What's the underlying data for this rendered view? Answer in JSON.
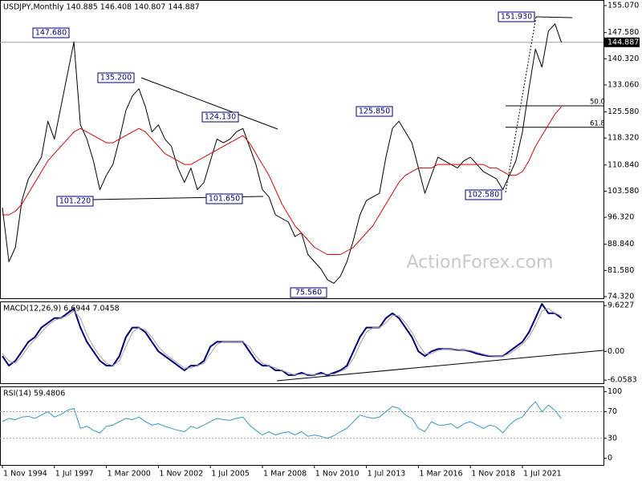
{
  "chart_data": [
    {
      "type": "line",
      "title": "USDJPY,Monthly  140.885 146.408 140.807 144.887",
      "watermark": "ActionForex.com",
      "ylim": [
        73.87,
        156.63
      ],
      "yticks": [
        {
          "value": 155.07,
          "label": "155.070"
        },
        {
          "value": 147.58,
          "label": "147.580"
        },
        {
          "value": 140.32,
          "label": "140.320"
        },
        {
          "value": 133.06,
          "label": "133.060"
        },
        {
          "value": 125.58,
          "label": "125.580"
        },
        {
          "value": 118.32,
          "label": "118.320"
        },
        {
          "value": 110.84,
          "label": "110.840"
        },
        {
          "value": 103.58,
          "label": "103.580"
        },
        {
          "value": 96.32,
          "label": "96.320"
        },
        {
          "value": 88.84,
          "label": "88.840"
        },
        {
          "value": 81.58,
          "label": "81.580"
        },
        {
          "value": 74.32,
          "label": "74.320"
        }
      ],
      "current_price": {
        "value": 144.887,
        "label": "144.887"
      },
      "fib_levels": [
        {
          "text": "50.0",
          "price": 127.25
        },
        {
          "text": "61.8",
          "price": 121.3
        }
      ],
      "annotations": [
        "147.680",
        "135.200",
        "124.130",
        "101.220",
        "101.650",
        "75.560",
        "125.850",
        "102.580",
        "151.930"
      ],
      "series": [
        {
          "color": "#000000",
          "width": 1,
          "values": [
            99,
            84,
            88,
            101,
            107,
            110,
            113,
            123,
            118,
            127,
            136,
            145,
            122,
            118,
            112,
            104,
            108,
            111,
            118,
            126,
            130,
            132,
            127,
            120,
            122,
            118,
            116,
            110,
            106,
            110,
            104,
            106,
            112,
            118,
            117,
            118,
            120,
            121,
            116,
            111,
            104,
            102,
            97,
            96,
            95,
            91,
            92,
            86,
            84,
            82,
            79,
            78,
            80,
            84,
            90,
            97,
            101,
            102,
            103,
            113,
            121,
            123,
            120,
            117,
            110,
            103,
            108,
            113,
            112,
            111,
            110,
            112,
            113,
            111,
            109,
            108,
            107,
            104,
            108,
            112,
            120,
            132,
            143,
            138,
            148,
            150,
            144.887
          ]
        },
        {
          "color": "#e00000",
          "width": 1,
          "values": [
            97,
            97,
            98,
            100,
            103,
            106,
            109,
            112,
            114,
            116,
            118,
            120,
            121,
            120,
            119,
            118,
            117,
            117,
            118,
            119,
            120,
            121,
            120,
            118,
            116,
            114,
            113,
            112,
            111,
            111,
            112,
            113,
            114,
            115,
            116,
            117,
            118,
            119,
            117,
            114,
            111,
            108,
            104,
            100,
            97,
            94,
            92,
            90,
            88,
            87,
            86,
            86,
            86,
            87,
            88,
            90,
            92,
            94,
            97,
            100,
            103,
            106,
            108,
            109,
            110,
            110,
            110,
            111,
            111,
            111,
            111,
            111,
            111,
            111,
            111,
            110,
            110,
            109,
            108,
            108,
            109,
            112,
            116,
            119,
            122,
            125,
            127
          ]
        }
      ]
    },
    {
      "type": "line",
      "title": "MACD(12,26,9) 6.6944 7.0458",
      "ylim": [
        -6.7,
        10.5
      ],
      "yticks": [
        9.6227,
        {
          "value": 0,
          "label": "0.00"
        },
        -6.0583
      ],
      "series": [
        {
          "color": "#000080",
          "width": 2,
          "values": [
            -1,
            -3,
            -2,
            0,
            2,
            3,
            5,
            6,
            7,
            7,
            8,
            9,
            5,
            2,
            0,
            -2,
            -3,
            -3,
            -1,
            3,
            5,
            5,
            4,
            2,
            0,
            -1,
            -2,
            -3,
            -4,
            -3,
            -3,
            -2,
            1,
            2,
            2,
            2,
            2,
            2,
            0,
            -2,
            -3,
            -3,
            -4,
            -4,
            -5,
            -5,
            -4.5,
            -5,
            -5,
            -4.5,
            -5,
            -4.5,
            -4,
            -3,
            0,
            3,
            5,
            5,
            5,
            7,
            8,
            7,
            5,
            3,
            0,
            -1,
            0,
            0.5,
            0.5,
            0.5,
            0.3,
            0.3,
            0,
            -0.5,
            -0.8,
            -1,
            -1,
            -1,
            0,
            1,
            2,
            4,
            7,
            10,
            8,
            8,
            7
          ]
        },
        {
          "color": "#a0a0a0",
          "width": 1,
          "values": [
            -0.5,
            -2,
            -2.5,
            -1,
            1,
            2.5,
            4,
            5.5,
            6.5,
            7,
            7.5,
            8.5,
            7,
            3.5,
            1,
            -1,
            -2.5,
            -3,
            -2,
            1,
            4,
            5,
            4.5,
            3,
            1,
            -0.5,
            -1.5,
            -2.5,
            -3.5,
            -3.5,
            -3,
            -2.5,
            -0.5,
            1.5,
            2,
            2,
            2,
            2,
            1,
            -1,
            -2.5,
            -3,
            -3.5,
            -4,
            -4.5,
            -5,
            -4.8,
            -4.8,
            -5,
            -4.8,
            -4.8,
            -4.8,
            -4.2,
            -3.5,
            -1.5,
            1.5,
            4,
            5,
            5,
            6,
            7.5,
            7.5,
            6,
            4,
            1.5,
            -0.5,
            -0.5,
            0.2,
            0.5,
            0.5,
            0.4,
            0.3,
            0.2,
            -0.2,
            -0.6,
            -0.9,
            -1,
            -1,
            -0.5,
            0.5,
            1.5,
            3,
            5.5,
            8.5,
            9,
            8,
            7.5
          ]
        }
      ]
    },
    {
      "type": "line",
      "title": "RSI(14) 59.4806",
      "ylim": [
        -10,
        108
      ],
      "yticks": [
        100,
        70,
        30,
        0
      ],
      "levels": [
        70,
        30
      ],
      "categories": [
        "1 Nov 1994",
        null,
        null,
        null,
        null,
        null,
        null,
        null,
        "1 Jul 1997",
        null,
        null,
        null,
        null,
        null,
        null,
        null,
        "1 Mar 2000",
        null,
        null,
        null,
        null,
        null,
        null,
        null,
        "1 Nov 2002",
        null,
        null,
        null,
        null,
        null,
        null,
        null,
        "1 Jul 2005",
        null,
        null,
        null,
        null,
        null,
        null,
        null,
        "1 Mar 2008",
        null,
        null,
        null,
        null,
        null,
        null,
        null,
        "1 Nov 2010",
        null,
        null,
        null,
        null,
        null,
        null,
        null,
        "1 Jul 2013",
        null,
        null,
        null,
        null,
        null,
        null,
        null,
        "1 Mar 2016",
        null,
        null,
        null,
        null,
        null,
        null,
        null,
        "1 Nov 2018",
        null,
        null,
        null,
        null,
        null,
        null,
        null,
        "1 Jul 2021",
        null,
        null,
        null,
        null,
        null,
        null
      ],
      "series": [
        {
          "color": "#3399cc",
          "width": 1,
          "values": [
            55,
            60,
            58,
            62,
            63,
            60,
            65,
            70,
            62,
            66,
            72,
            75,
            45,
            48,
            42,
            38,
            48,
            50,
            55,
            60,
            58,
            62,
            55,
            50,
            52,
            48,
            45,
            42,
            40,
            48,
            45,
            50,
            55,
            60,
            58,
            57,
            60,
            62,
            50,
            42,
            35,
            40,
            35,
            38,
            40,
            35,
            40,
            33,
            35,
            33,
            30,
            34,
            40,
            45,
            55,
            65,
            62,
            60,
            62,
            70,
            78,
            75,
            65,
            60,
            45,
            40,
            55,
            50,
            50,
            52,
            45,
            52,
            55,
            50,
            45,
            50,
            47,
            38,
            50,
            58,
            62,
            75,
            85,
            70,
            80,
            72,
            59.4806
          ]
        }
      ]
    }
  ]
}
